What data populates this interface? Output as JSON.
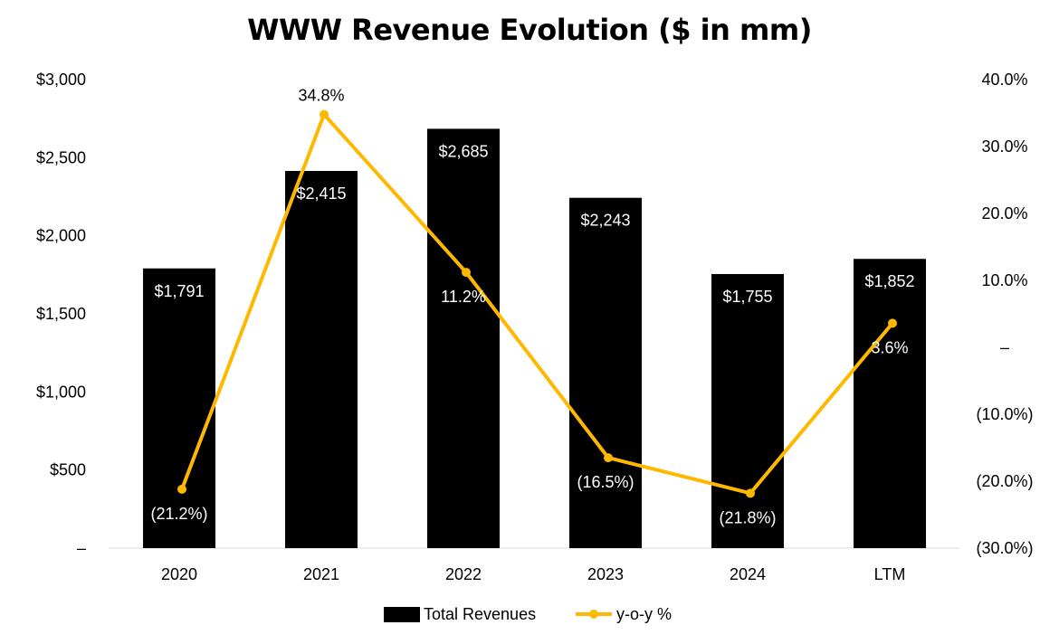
{
  "chart_data": {
    "type": "bar",
    "title": "WWW Revenue Evolution ($ in mm)",
    "categories": [
      "2020",
      "2021",
      "2022",
      "2023",
      "2024",
      "LTM"
    ],
    "series": [
      {
        "name": "Total Revenues",
        "type": "bar",
        "axis": "left",
        "color": "#000000",
        "values": [
          1791,
          2415,
          2685,
          2243,
          1755,
          1852
        ],
        "labels": [
          "$1,791",
          "$2,415",
          "$2,685",
          "$2,243",
          "$1,755",
          "$1,852"
        ]
      },
      {
        "name": "y-o-y %",
        "type": "line",
        "axis": "right",
        "color": "#FFB800",
        "values": [
          -21.2,
          34.8,
          11.2,
          -16.5,
          -21.8,
          3.6
        ],
        "labels": [
          "(21.2%)",
          "34.8%",
          "11.2%",
          "(16.5%)",
          "(21.8%)",
          "3.6%"
        ]
      }
    ],
    "y_left": {
      "lim": [
        0,
        3000
      ],
      "ticks": [
        0,
        500,
        1000,
        1500,
        2000,
        2500,
        3000
      ],
      "tick_labels": [
        "–",
        "$500",
        "$1,000",
        "$1,500",
        "$2,000",
        "$2,500",
        "$3,000"
      ]
    },
    "y_right": {
      "lim": [
        -30,
        40
      ],
      "ticks": [
        -30,
        -20,
        -10,
        0,
        10,
        20,
        30,
        40
      ],
      "tick_labels": [
        "(30.0%)",
        "(20.0%)",
        "(10.0%)",
        "–",
        "10.0%",
        "20.0%",
        "30.0%",
        "40.0%"
      ]
    },
    "grid": false,
    "legend_position": "bottom"
  }
}
